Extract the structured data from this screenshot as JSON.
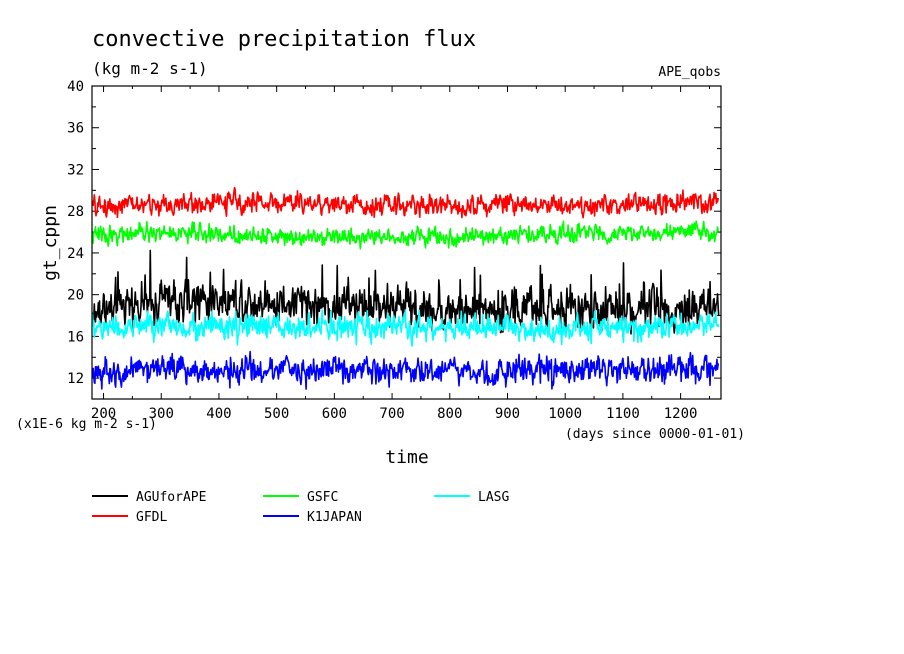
{
  "chart_data": {
    "type": "line",
    "title": "convective precipitation flux",
    "subtitle": "(kg m-2 s-1)",
    "tag": "APE_qobs",
    "xlabel": "time",
    "ylabel": "gt_cppn",
    "x_unit_note": "(days since 0000-01-01)",
    "y_scale_note": "(x1E-6 kg m-2 s-1)",
    "xlim": [
      180,
      1270
    ],
    "ylim": [
      10,
      40
    ],
    "x_ticks": [
      "200",
      "300",
      "400",
      "500",
      "600",
      "700",
      "800",
      "900",
      "1000",
      "1100",
      "1200"
    ],
    "y_ticks": [
      "12",
      "16",
      "20",
      "24",
      "28",
      "32",
      "36",
      "40"
    ],
    "grid": false,
    "legend_position": "bottom",
    "series": [
      {
        "name": "AGUforAPE",
        "color": "#000000",
        "x": [
          180,
          240,
          300,
          360,
          400,
          440,
          500,
          560,
          600,
          640,
          700,
          760,
          800,
          840,
          900,
          960,
          1000,
          1060,
          1100,
          1160,
          1200,
          1266
        ],
        "y": [
          18.0,
          18.8,
          19.2,
          19.4,
          19.6,
          19.4,
          19.2,
          19.0,
          19.0,
          18.8,
          18.9,
          18.6,
          18.5,
          18.4,
          18.6,
          18.5,
          18.4,
          18.4,
          18.5,
          18.6,
          18.7,
          18.6
        ],
        "noise": 1.4
      },
      {
        "name": "GFDL",
        "color": "#ff0000",
        "x": [
          180,
          240,
          300,
          360,
          400,
          440,
          500,
          560,
          600,
          640,
          700,
          760,
          800,
          840,
          900,
          960,
          1000,
          1060,
          1100,
          1160,
          1200,
          1266
        ],
        "y": [
          28.4,
          28.6,
          28.6,
          28.7,
          28.8,
          28.9,
          28.8,
          28.8,
          28.7,
          28.6,
          28.6,
          28.6,
          28.5,
          28.6,
          28.8,
          28.7,
          28.6,
          28.5,
          28.6,
          28.7,
          28.8,
          28.8
        ],
        "noise": 0.7
      },
      {
        "name": "GSFC",
        "color": "#00ff00",
        "x": [
          180,
          240,
          300,
          360,
          400,
          440,
          500,
          560,
          600,
          640,
          700,
          760,
          800,
          840,
          900,
          960,
          1000,
          1060,
          1100,
          1160,
          1200,
          1266
        ],
        "y": [
          25.7,
          25.8,
          25.9,
          25.9,
          25.8,
          25.7,
          25.6,
          25.7,
          25.6,
          25.5,
          25.6,
          25.6,
          25.4,
          25.5,
          25.7,
          25.8,
          25.9,
          25.9,
          25.8,
          25.9,
          26.0,
          26.0
        ],
        "noise": 0.6
      },
      {
        "name": "K1JAPAN",
        "color": "#0000ff",
        "x": [
          180,
          240,
          300,
          360,
          400,
          440,
          500,
          560,
          600,
          640,
          700,
          760,
          800,
          840,
          900,
          960,
          1000,
          1060,
          1100,
          1160,
          1200,
          1266
        ],
        "y": [
          12.6,
          12.8,
          12.9,
          12.8,
          12.7,
          12.6,
          12.7,
          12.8,
          12.9,
          12.7,
          12.6,
          12.6,
          12.5,
          12.6,
          12.7,
          12.8,
          12.9,
          12.8,
          12.7,
          12.8,
          13.0,
          12.8
        ],
        "noise": 0.9
      },
      {
        "name": "LASG",
        "color": "#00ffff",
        "x": [
          180,
          240,
          300,
          360,
          400,
          440,
          500,
          560,
          600,
          640,
          700,
          760,
          800,
          840,
          900,
          960,
          1000,
          1060,
          1100,
          1160,
          1200,
          1266
        ],
        "y": [
          16.8,
          16.9,
          17.0,
          17.0,
          16.9,
          16.8,
          16.9,
          16.9,
          16.8,
          16.7,
          16.8,
          16.8,
          16.7,
          16.8,
          16.9,
          16.8,
          16.8,
          16.9,
          16.8,
          16.9,
          17.0,
          17.0
        ],
        "noise": 0.9
      }
    ]
  }
}
